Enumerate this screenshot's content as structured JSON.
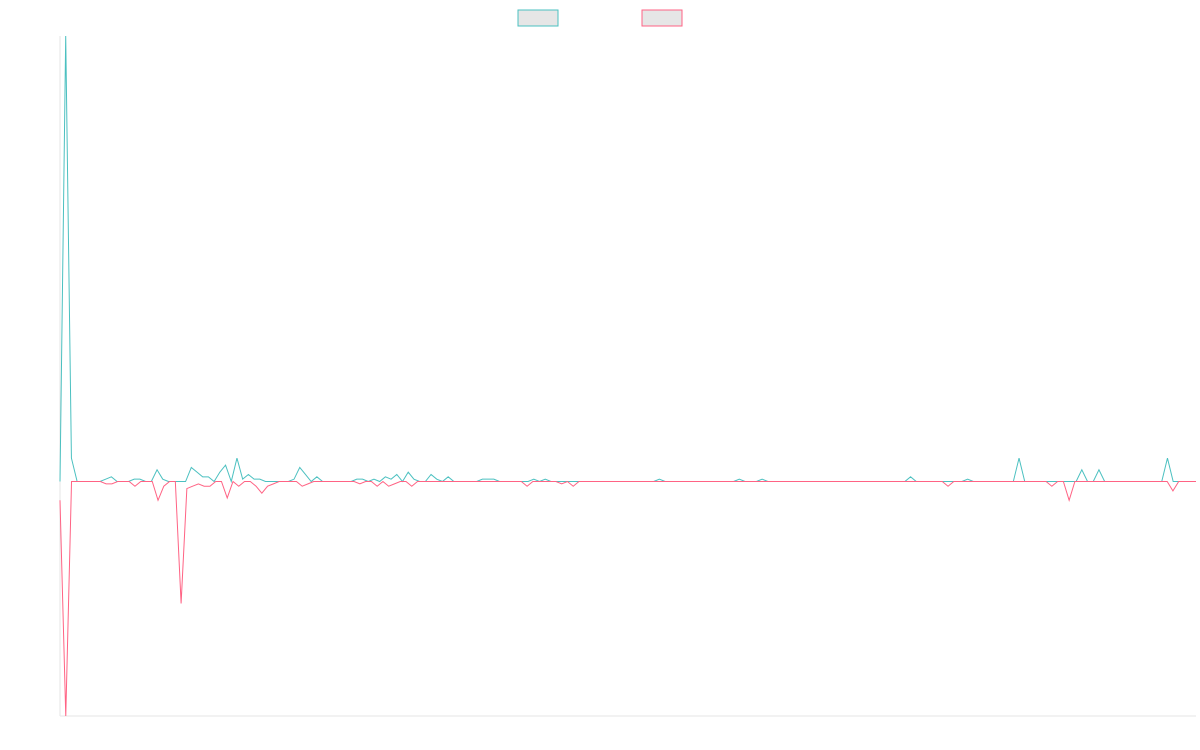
{
  "chart_data": {
    "type": "line",
    "title": "",
    "xlabel": "",
    "ylabel": "",
    "x_range": [
      0,
      200
    ],
    "ylim": [
      -100,
      190
    ],
    "grid": false,
    "legend": {
      "placement": "top-center",
      "entries": [
        {
          "name": "",
          "color": "#4bc0c0",
          "fill": "#e6e6e6"
        },
        {
          "name": "",
          "color": "#ff6384",
          "fill": "#e6e6e6"
        }
      ]
    },
    "series": [
      {
        "name": "",
        "color": "#4bc0c0",
        "values": [
          0,
          190,
          10,
          0,
          0,
          0,
          0,
          0,
          1,
          2,
          0,
          0,
          0,
          1,
          1,
          0,
          0,
          5,
          1,
          0,
          0,
          0,
          0,
          6,
          4,
          2,
          2,
          0,
          4,
          7,
          0,
          10,
          1,
          3,
          1,
          1,
          0,
          0,
          0,
          0,
          0,
          1,
          6,
          3,
          0,
          2,
          0,
          0,
          0,
          0,
          0,
          0,
          1,
          1,
          0,
          1,
          0,
          2,
          1,
          3,
          0,
          4,
          1,
          0,
          0,
          3,
          1,
          0,
          2,
          0,
          0,
          0,
          0,
          0,
          1,
          1,
          1,
          0,
          0,
          0,
          0,
          0,
          0,
          1,
          0,
          1,
          0,
          0,
          0,
          0,
          0,
          0,
          0,
          0,
          0,
          0,
          0,
          0,
          0,
          0,
          0,
          0,
          0,
          0,
          0,
          1,
          0,
          0,
          0,
          0,
          0,
          0,
          0,
          0,
          0,
          0,
          0,
          0,
          0,
          1,
          0,
          0,
          0,
          1,
          0,
          0,
          0,
          0,
          0,
          0,
          0,
          0,
          0,
          0,
          0,
          0,
          0,
          0,
          0,
          0,
          0,
          0,
          0,
          0,
          0,
          0,
          0,
          0,
          0,
          2,
          0,
          0,
          0,
          0,
          0,
          0,
          0,
          0,
          0,
          1,
          0,
          0,
          0,
          0,
          0,
          0,
          0,
          0,
          10,
          0,
          0,
          0,
          0,
          0,
          0,
          0,
          0,
          0,
          0,
          5,
          0,
          0,
          5,
          0,
          0,
          0,
          0,
          0,
          0,
          0,
          0,
          0,
          0,
          0,
          10,
          0,
          0,
          0,
          0,
          0
        ]
      },
      {
        "name": "",
        "color": "#ff6384",
        "values": [
          -8,
          -100,
          0,
          0,
          0,
          0,
          0,
          0,
          -1,
          -1,
          0,
          0,
          0,
          -2,
          0,
          0,
          0,
          -8,
          -2,
          0,
          0,
          -52,
          -3,
          -2,
          -1,
          -2,
          -2,
          0,
          0,
          -7,
          0,
          -2,
          0,
          0,
          -2,
          -5,
          -2,
          -1,
          0,
          0,
          0,
          0,
          -2,
          -1,
          0,
          0,
          0,
          0,
          0,
          0,
          0,
          0,
          -1,
          0,
          0,
          -2,
          0,
          -2,
          -1,
          0,
          0,
          -2,
          0,
          0,
          0,
          0,
          0,
          0,
          0,
          0,
          0,
          0,
          0,
          0,
          0,
          0,
          0,
          0,
          0,
          0,
          0,
          -2,
          0,
          0,
          0,
          0,
          0,
          -1,
          0,
          -2,
          0,
          0,
          0,
          0,
          0,
          0,
          0,
          0,
          0,
          0,
          0,
          0,
          0,
          0,
          0,
          0,
          0,
          0,
          0,
          0,
          0,
          0,
          0,
          0,
          0,
          0,
          0,
          0,
          0,
          0,
          0,
          0,
          0,
          0,
          0,
          0,
          0,
          0,
          0,
          0,
          0,
          0,
          0,
          0,
          0,
          0,
          0,
          0,
          0,
          0,
          0,
          0,
          0,
          0,
          0,
          0,
          0,
          0,
          0,
          0,
          0,
          0,
          0,
          0,
          -2,
          0,
          0,
          0,
          0,
          0,
          0,
          0,
          0,
          0,
          0,
          0,
          0,
          0,
          0,
          0,
          0,
          0,
          -2,
          0,
          0,
          -8,
          0,
          0,
          0,
          0,
          0,
          0,
          0,
          0,
          0,
          0,
          0,
          0,
          0,
          0,
          0,
          0,
          0,
          -4,
          0,
          0,
          0,
          0
        ]
      }
    ]
  }
}
